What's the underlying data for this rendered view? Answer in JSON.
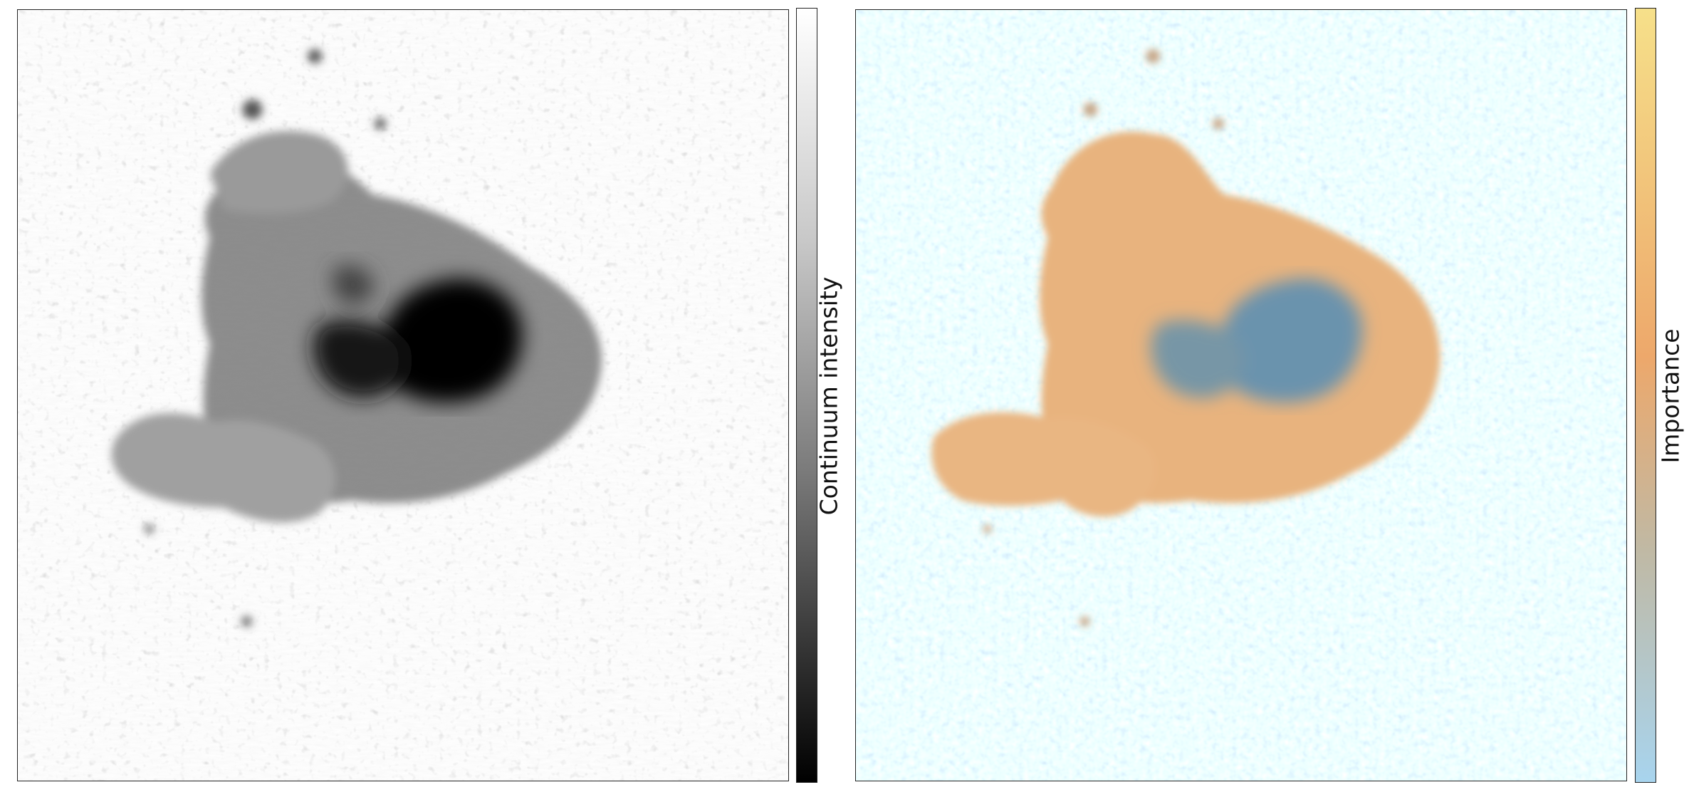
{
  "left_panel": {
    "colorbar_label": "Continuum intensity",
    "colormap": {
      "top": "#ffffff",
      "bottom": "#000000"
    },
    "quiet_sun_color": "#d8d8d8",
    "penumbra_color": "#8a8a8a",
    "umbra_color": "#0a0a0a"
  },
  "right_panel": {
    "colorbar_label": "Importance",
    "colormap": {
      "top": "#f6e08a",
      "middle": "#eca76a",
      "lower": "#b8bcb0",
      "bottom": "#a8d4ee"
    },
    "quiet_sun_color": "#b2daef",
    "penumbra_color": "#e6b27e",
    "umbra_color": "#6e94ad"
  }
}
